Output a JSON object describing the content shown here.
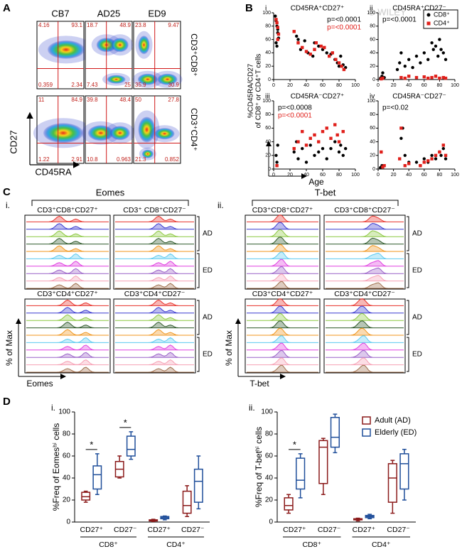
{
  "panel_labels": [
    "A",
    "B",
    "C",
    "D"
  ],
  "watermark": "© WILEY",
  "flow": {
    "columns": [
      "CB7",
      "AD25",
      "ED9"
    ],
    "rows": [
      "CD3⁺CD8⁺",
      "CD3⁺CD4⁺"
    ],
    "y_label": "CD27",
    "x_label": "CD45RA",
    "quadrants": [
      [
        [
          4.16,
          93.1,
          0.359,
          2.34
        ],
        [
          18.7,
          48.9,
          7.43,
          25
        ],
        [
          23.8,
          9.47,
          35.9,
          30.9
        ]
      ],
      [
        [
          11,
          84.9,
          1.22,
          2.91
        ],
        [
          39.8,
          48.4,
          10.8,
          0.963
        ],
        [
          50,
          27.8,
          21.3,
          0.852
        ]
      ]
    ]
  },
  "scatter_axes": {
    "y_label": [
      "%CD45RA/CD27",
      "of CD8⁺ or CD4⁺T cells"
    ],
    "x_label": "Age"
  },
  "histograms": {
    "y_label": "% of Max",
    "cohorts": [
      "AD",
      "ED"
    ],
    "groups": [
      {
        "label": "i.",
        "marker": "Eomes",
        "x_label": "Eomes",
        "panels": [
          "CD3⁺CD8⁺CD27⁺",
          "CD3⁺ CD8⁺CD27⁻",
          "CD3⁺CD4⁺CD27⁺",
          "CD3⁺CD4⁺CD27⁻"
        ]
      },
      {
        "label": "ii.",
        "marker": "T-bet",
        "x_label": "T-bet",
        "panels": [
          "CD3⁺CD8⁺CD27⁺",
          "CD3⁺CD8⁺CD27⁻",
          "CD3⁺CD4⁺CD27⁺",
          "CD3⁺CD4⁺CD27⁻"
        ]
      }
    ]
  },
  "chart_data": [
    {
      "type": "scatter",
      "label": "i",
      "title": "CD45RA⁺CD27⁺",
      "xlim": [
        0,
        100
      ],
      "xticks": [
        0,
        20,
        40,
        60,
        80,
        100
      ],
      "ylim": [
        0,
        100
      ],
      "yticks": [
        0,
        20,
        40,
        60,
        80,
        100
      ],
      "series": [
        {
          "color": "#000000",
          "x": [
            2,
            3,
            4,
            5,
            5,
            6,
            3,
            4,
            28,
            30,
            33,
            38,
            42,
            48,
            50,
            55,
            60,
            65,
            70,
            75,
            78,
            80,
            82,
            85,
            88
          ],
          "values": [
            95,
            88,
            80,
            75,
            70,
            62,
            55,
            50,
            65,
            60,
            45,
            58,
            40,
            35,
            55,
            50,
            45,
            40,
            38,
            30,
            25,
            20,
            35,
            22,
            18
          ]
        },
        {
          "color": "#e0201b",
          "x": [
            3,
            4,
            5,
            6,
            5,
            25,
            30,
            35,
            40,
            45,
            50,
            52,
            58,
            62,
            68,
            72,
            76,
            80,
            83,
            86
          ],
          "values": [
            90,
            85,
            78,
            68,
            60,
            72,
            55,
            48,
            42,
            38,
            45,
            55,
            50,
            48,
            35,
            40,
            30,
            25,
            20,
            15
          ]
        }
      ],
      "annotations": [
        {
          "text": "p=<0.0001",
          "color": "#000000"
        },
        {
          "text": "p=<0.0001",
          "color": "#e0201b"
        }
      ]
    },
    {
      "type": "scatter",
      "label": "ii",
      "title": "CD45RA⁺CD27⁻",
      "legend": "upper right",
      "xlim": [
        0,
        100
      ],
      "xticks": [
        0,
        20,
        40,
        60,
        80,
        100
      ],
      "ylim": [
        0,
        100
      ],
      "yticks": [
        0,
        20,
        40,
        60,
        80,
        100
      ],
      "series": [
        {
          "name": "CD8⁺",
          "color": "#000000",
          "x": [
            3,
            5,
            6,
            8,
            25,
            28,
            30,
            35,
            40,
            45,
            50,
            55,
            60,
            65,
            70,
            72,
            75,
            78,
            80,
            82,
            85,
            88
          ],
          "values": [
            2,
            5,
            10,
            3,
            15,
            25,
            40,
            20,
            30,
            18,
            35,
            25,
            40,
            30,
            55,
            45,
            50,
            35,
            60,
            45,
            40,
            30
          ]
        },
        {
          "name": "CD4⁺",
          "color": "#e0201b",
          "x": [
            4,
            6,
            30,
            35,
            40,
            50,
            60,
            65,
            70,
            75,
            80,
            85,
            88
          ],
          "values": [
            1,
            2,
            3,
            2,
            5,
            3,
            4,
            2,
            3,
            5,
            2,
            3,
            2
          ]
        }
      ],
      "annotations": [
        {
          "text": "p=<0.0001",
          "color": "#000000"
        }
      ]
    },
    {
      "type": "scatter",
      "label": "iii",
      "title": "CD45RA⁻CD27⁺",
      "xlim": [
        0,
        100
      ],
      "xticks": [
        0,
        20,
        40,
        60,
        80,
        100
      ],
      "ylim": [
        0,
        100
      ],
      "yticks": [
        0,
        20,
        40,
        60,
        80,
        100
      ],
      "series": [
        {
          "color": "#000000",
          "x": [
            3,
            4,
            5,
            25,
            28,
            30,
            35,
            40,
            45,
            50,
            55,
            60,
            65,
            70,
            75,
            80,
            82,
            85,
            88
          ],
          "values": [
            20,
            10,
            35,
            25,
            40,
            15,
            30,
            10,
            35,
            20,
            25,
            30,
            15,
            30,
            40,
            25,
            35,
            20,
            30
          ]
        },
        {
          "color": "#e0201b",
          "x": [
            4,
            25,
            30,
            35,
            40,
            45,
            50,
            55,
            60,
            65,
            70,
            75,
            78,
            80,
            85
          ],
          "values": [
            5,
            30,
            40,
            55,
            35,
            45,
            50,
            40,
            55,
            60,
            45,
            65,
            50,
            40,
            55
          ]
        }
      ],
      "annotations": [
        {
          "text": "p=<0.0008",
          "color": "#000000"
        },
        {
          "text": "p=<0.0001",
          "color": "#e0201b"
        }
      ]
    },
    {
      "type": "scatter",
      "label": "iv",
      "title": "CD45RA⁻CD27⁻",
      "xlim": [
        0,
        100
      ],
      "xticks": [
        0,
        20,
        40,
        60,
        80,
        100
      ],
      "ylim": [
        0,
        100
      ],
      "yticks": [
        0,
        20,
        40,
        60,
        80,
        100
      ],
      "series": [
        {
          "color": "#000000",
          "x": [
            3,
            5,
            30,
            32,
            35,
            40,
            50,
            55,
            60,
            65,
            70,
            75,
            80,
            82,
            85,
            88
          ],
          "values": [
            2,
            5,
            45,
            60,
            20,
            10,
            10,
            5,
            15,
            10,
            20,
            15,
            25,
            20,
            30,
            15
          ]
        },
        {
          "color": "#e0201b",
          "x": [
            4,
            6,
            8,
            28,
            30,
            35,
            40,
            55,
            60,
            65,
            70,
            75,
            80,
            85,
            88
          ],
          "values": [
            25,
            3,
            5,
            15,
            60,
            5,
            8,
            5,
            10,
            12,
            15,
            20,
            25,
            35,
            20
          ]
        }
      ],
      "annotations": [
        {
          "text": "p=<0.02",
          "color": "#000000"
        }
      ]
    },
    {
      "type": "box",
      "label": "i.",
      "y_label": "%Freq of Eomesʰⁱ cells",
      "ylim": [
        0,
        100
      ],
      "yticks": [
        0,
        20,
        40,
        60,
        80,
        100
      ],
      "categories": [
        "CD27⁺",
        "CD27⁻",
        "CD27⁺",
        "CD27⁻"
      ],
      "groups": [
        "CD8⁺",
        "CD4⁺"
      ],
      "series": [
        {
          "color": "#8b1a1a",
          "values": [
            [
              18,
              20,
              23,
              27,
              28
            ],
            [
              40,
              41,
              48,
              55,
              60
            ],
            [
              0.5,
              1,
              1.5,
              2,
              2.5
            ],
            [
              5,
              8,
              15,
              28,
              33
            ]
          ]
        },
        {
          "color": "#1f4e9a",
          "values": [
            [
              25,
              30,
              43,
              51,
              62
            ],
            [
              57,
              60,
              66,
              78,
              82
            ],
            [
              2,
              3,
              4,
              5,
              5.5
            ],
            [
              12,
              18,
              37,
              48,
              60
            ]
          ]
        }
      ],
      "annotations": [
        "*",
        "*"
      ]
    },
    {
      "type": "box",
      "label": "ii.",
      "y_label": "%Freq of T-betʰⁱ cells",
      "legend": "upper right",
      "ylim": [
        0,
        100
      ],
      "yticks": [
        0,
        20,
        40,
        60,
        80,
        100
      ],
      "categories": [
        "CD27⁺",
        "CD27⁻",
        "CD27⁺",
        "CD27⁻"
      ],
      "groups": [
        "CD8⁺",
        "CD4⁺"
      ],
      "series": [
        {
          "name": "Adult (AD)",
          "color": "#8b1a1a",
          "values": [
            [
              8,
              11,
              15,
              22,
              25
            ],
            [
              25,
              35,
              68,
              74,
              76
            ],
            [
              1,
              2,
              2.5,
              3,
              3.5
            ],
            [
              8,
              18,
              40,
              53,
              56
            ]
          ]
        },
        {
          "name": "Elderly (ED)",
          "color": "#1f4e9a",
          "values": [
            [
              22,
              30,
              38,
              58,
              62
            ],
            [
              63,
              68,
              77,
              95,
              98
            ],
            [
              3,
              4,
              5,
              6,
              7
            ],
            [
              20,
              30,
              53,
              62,
              66
            ]
          ]
        }
      ],
      "annotations": [
        "*"
      ]
    }
  ]
}
